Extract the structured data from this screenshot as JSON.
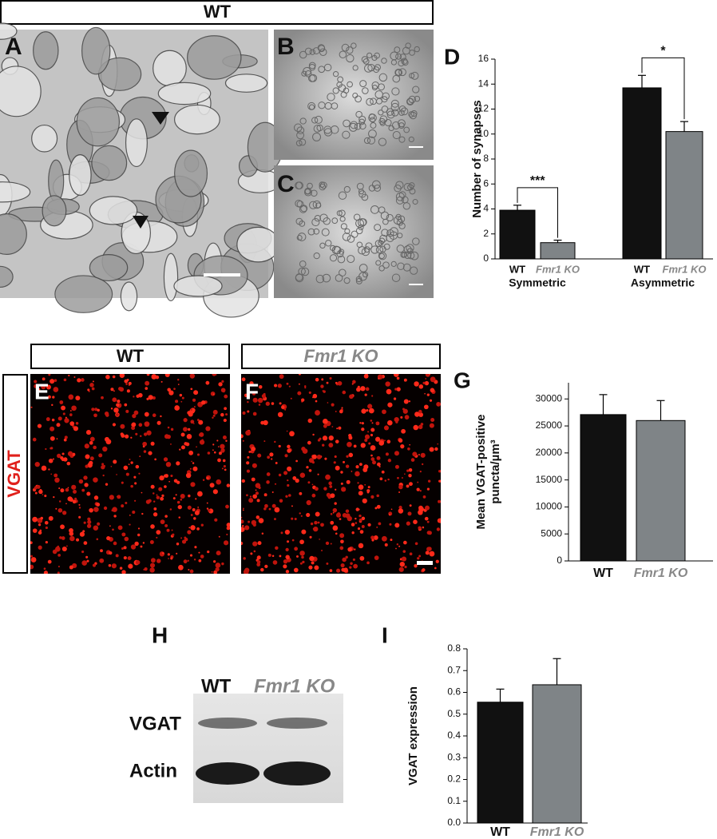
{
  "header": "WT",
  "panel_labels": [
    "A",
    "B",
    "C",
    "D",
    "E",
    "F",
    "G",
    "H",
    "I"
  ],
  "imaging": {
    "wt_label": "WT",
    "ko_label": "Fmr1 KO",
    "stain": "VGAT"
  },
  "blot": {
    "lanes": [
      "WT",
      "Fmr1 KO"
    ],
    "rows": [
      "VGAT",
      "Actin"
    ]
  },
  "chart_data": [
    {
      "type": "bar",
      "ylabel": [
        "Number of synapses"
      ],
      "groups": [
        "Symmetric",
        "Asymmetric"
      ],
      "series": [
        {
          "name": "WT",
          "color": "#111111",
          "values": [
            3.9,
            13.7
          ],
          "errors": [
            0.4,
            1.0
          ]
        },
        {
          "name": "Fmr1 KO",
          "color": "#7f8487",
          "values": [
            1.3,
            10.2
          ],
          "errors": [
            0.2,
            0.8
          ]
        }
      ],
      "annotations": [
        "***",
        "*"
      ],
      "ylim": [
        0,
        16
      ],
      "yticks": [
        0,
        2,
        4,
        6,
        8,
        10,
        12,
        14,
        16
      ]
    },
    {
      "type": "bar",
      "ylabel": [
        "Mean VGAT-positive",
        "puncta/µm³"
      ],
      "series": [
        {
          "name": "WT",
          "color": "#111111",
          "values": [
            27100
          ],
          "errors": [
            3700
          ]
        },
        {
          "name": "Fmr1 KO",
          "color": "#7f8487",
          "values": [
            26000
          ],
          "errors": [
            3700
          ]
        }
      ],
      "ylim": [
        0,
        33000
      ],
      "yticks": [
        0,
        5000,
        10000,
        15000,
        20000,
        25000,
        30000
      ]
    },
    {
      "type": "bar",
      "ylabel": [
        "VGAT expression"
      ],
      "series": [
        {
          "name": "WT",
          "color": "#111111",
          "values": [
            0.555
          ],
          "errors": [
            0.06
          ]
        },
        {
          "name": "Fmr1 KO",
          "color": "#7f8487",
          "values": [
            0.635
          ],
          "errors": [
            0.12
          ]
        }
      ],
      "ylim": [
        0,
        0.8
      ],
      "yticks": [
        {
          "value": 0,
          "label": "0.0"
        },
        0.1,
        0.2,
        0.3,
        0.4,
        0.5,
        0.6,
        0.7,
        0.8
      ]
    }
  ]
}
